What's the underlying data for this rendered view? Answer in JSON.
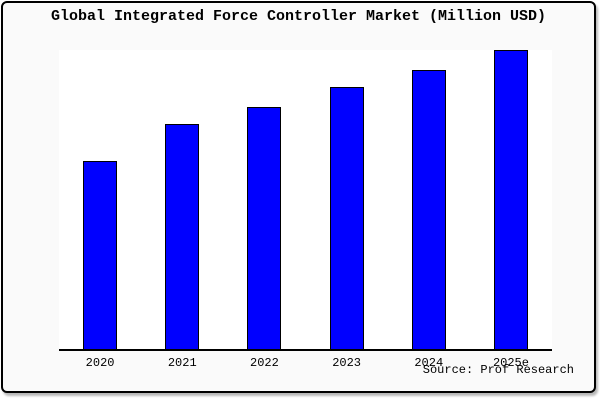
{
  "window": {
    "title": "Global Integrated Force Controller Market (Million USD)"
  },
  "chart_data": {
    "type": "bar",
    "title": "Global Integrated Force Controller Market (Million USD)",
    "categories": [
      "2020",
      "2021",
      "2022",
      "2023",
      "2024",
      "2025e"
    ],
    "values": [
      62.8,
      75.1,
      81.1,
      87.7,
      93.4,
      100
    ],
    "values_unit": "relative index (no y-axis scale shown; 2025e = 100)",
    "xlabel": "",
    "ylabel": "",
    "ylim": [
      0,
      100
    ],
    "y_axis_visible": false,
    "gridlines": false,
    "legend": false,
    "bar_color": "#0000ff",
    "bar_border_color": "#000000",
    "plot_background": "#ffffff",
    "figure_background": "#fafafa"
  },
  "source": {
    "label": "Source: Prof Research"
  }
}
